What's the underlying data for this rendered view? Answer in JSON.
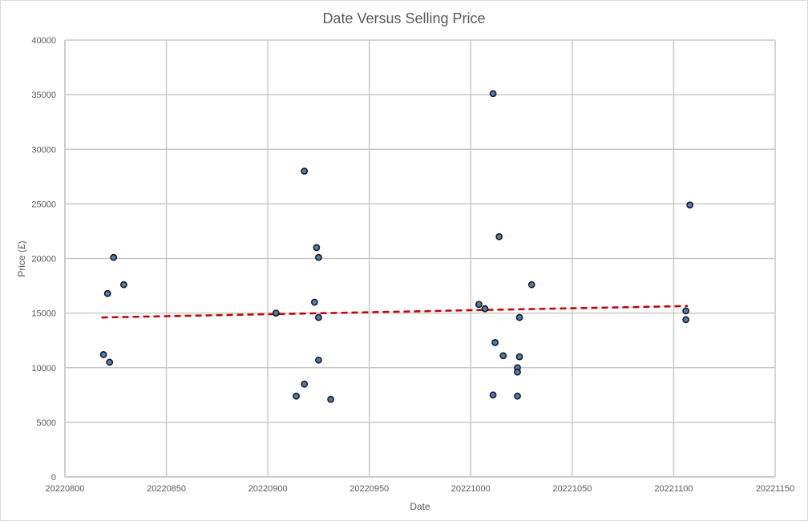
{
  "chart_data": {
    "type": "scatter",
    "title": "Date Versus Selling Price",
    "xlabel": "Date",
    "ylabel": "Price (£)",
    "xlim": [
      20220800,
      20221150
    ],
    "ylim": [
      0,
      40000
    ],
    "x_ticks": [
      20220800,
      20220850,
      20220900,
      20220950,
      20221000,
      20221050,
      20221100,
      20221150
    ],
    "y_ticks": [
      0,
      5000,
      10000,
      15000,
      20000,
      25000,
      30000,
      35000,
      40000
    ],
    "grid": true,
    "legend": "none",
    "series": [
      {
        "color": "#4a7ebb",
        "points": [
          {
            "x": 20220819,
            "y": 11200
          },
          {
            "x": 20220821,
            "y": 16800
          },
          {
            "x": 20220822,
            "y": 10500
          },
          {
            "x": 20220824,
            "y": 20100
          },
          {
            "x": 20220829,
            "y": 17600
          },
          {
            "x": 20220904,
            "y": 15000
          },
          {
            "x": 20220914,
            "y": 7400
          },
          {
            "x": 20220918,
            "y": 28000
          },
          {
            "x": 20220918,
            "y": 8500
          },
          {
            "x": 20220923,
            "y": 16000
          },
          {
            "x": 20220924,
            "y": 21000
          },
          {
            "x": 20220925,
            "y": 20100
          },
          {
            "x": 20220925,
            "y": 14600
          },
          {
            "x": 20220925,
            "y": 10700
          },
          {
            "x": 20220931,
            "y": 7100
          },
          {
            "x": 20221004,
            "y": 15800
          },
          {
            "x": 20221007,
            "y": 15400
          },
          {
            "x": 20221011,
            "y": 35100
          },
          {
            "x": 20221011,
            "y": 7500
          },
          {
            "x": 20221012,
            "y": 12300
          },
          {
            "x": 20221014,
            "y": 22000
          },
          {
            "x": 20221016,
            "y": 11100
          },
          {
            "x": 20221023,
            "y": 10000
          },
          {
            "x": 20221023,
            "y": 9600
          },
          {
            "x": 20221023,
            "y": 7400
          },
          {
            "x": 20221024,
            "y": 14600
          },
          {
            "x": 20221024,
            "y": 11000
          },
          {
            "x": 20221030,
            "y": 17600
          },
          {
            "x": 20221106,
            "y": 15200
          },
          {
            "x": 20221106,
            "y": 14400
          },
          {
            "x": 20221108,
            "y": 24900
          }
        ]
      }
    ],
    "trendline": {
      "type": "linear",
      "color": "#c00000",
      "style": "dashed",
      "from": {
        "x": 20220818,
        "y": 14600
      },
      "to": {
        "x": 20221107,
        "y": 15650
      }
    }
  }
}
